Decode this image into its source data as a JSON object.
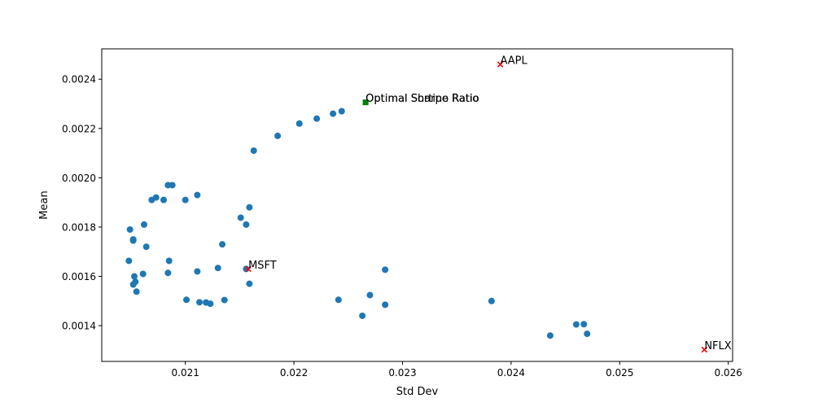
{
  "chart_data": {
    "type": "scatter",
    "title": "",
    "xlabel": "Std Dev",
    "ylabel": "Mean",
    "xlim": [
      0.02023,
      0.02604
    ],
    "ylim": [
      0.001255,
      0.002523
    ],
    "xticks": [
      0.021,
      0.022,
      0.023,
      0.024,
      0.025,
      0.026
    ],
    "yticks": [
      0.0014,
      0.0016,
      0.0018,
      0.002,
      0.0022,
      0.0024
    ],
    "xtick_labels": [
      "0.021",
      "0.022",
      "0.023",
      "0.024",
      "0.025",
      "0.026"
    ],
    "ytick_labels": [
      "0.0014",
      "0.0016",
      "0.0018",
      "0.0020",
      "0.0022",
      "0.0024"
    ],
    "grid": false,
    "series": [
      {
        "marker": "circle",
        "color": "#1f77b4",
        "points": [
          [
            0.02049,
            0.00179
          ],
          [
            0.02052,
            0.00175
          ],
          [
            0.02052,
            0.001745
          ],
          [
            0.02048,
            0.001663
          ],
          [
            0.02053,
            0.0016
          ],
          [
            0.02054,
            0.001578
          ],
          [
            0.02052,
            0.001567
          ],
          [
            0.02055,
            0.001538
          ],
          [
            0.02062,
            0.00181
          ],
          [
            0.02064,
            0.00172
          ],
          [
            0.02061,
            0.00161
          ],
          [
            0.02069,
            0.00191
          ],
          [
            0.02073,
            0.00192
          ],
          [
            0.0208,
            0.00191
          ],
          [
            0.02084,
            0.00197
          ],
          [
            0.02088,
            0.00197
          ],
          [
            0.021,
            0.00191
          ],
          [
            0.02111,
            0.00193
          ],
          [
            0.02084,
            0.001614
          ],
          [
            0.02085,
            0.001663
          ],
          [
            0.02111,
            0.00162
          ],
          [
            0.02101,
            0.001505
          ],
          [
            0.02113,
            0.001495
          ],
          [
            0.02119,
            0.001494
          ],
          [
            0.02123,
            0.001489
          ],
          [
            0.02136,
            0.001504
          ],
          [
            0.0213,
            0.001634
          ],
          [
            0.02134,
            0.00173
          ],
          [
            0.02151,
            0.001838
          ],
          [
            0.02156,
            0.00181
          ],
          [
            0.02159,
            0.00188
          ],
          [
            0.02156,
            0.00163
          ],
          [
            0.02159,
            0.00157
          ],
          [
            0.02163,
            0.00211
          ],
          [
            0.02185,
            0.00217
          ],
          [
            0.02205,
            0.00222
          ],
          [
            0.02221,
            0.00224
          ],
          [
            0.02236,
            0.00226
          ],
          [
            0.02244,
            0.00227
          ],
          [
            0.02241,
            0.001505
          ],
          [
            0.02263,
            0.00144
          ],
          [
            0.0227,
            0.001524
          ],
          [
            0.02284,
            0.001627
          ],
          [
            0.02284,
            0.001485
          ],
          [
            0.02382,
            0.0015
          ],
          [
            0.02436,
            0.00136
          ],
          [
            0.0246,
            0.001405
          ],
          [
            0.02467,
            0.001406
          ],
          [
            0.0247,
            0.001367
          ]
        ]
      },
      {
        "marker": "x",
        "color": "#ff0000",
        "points": [
          [
            0.0239,
            0.00246
          ],
          [
            0.02158,
            0.00163
          ],
          [
            0.02578,
            0.001303
          ]
        ],
        "labels": [
          "AAPL",
          "MSFT",
          "NFLX"
        ]
      },
      {
        "marker": "square",
        "color": "#008000",
        "points": [
          [
            0.02266,
            0.002306
          ]
        ],
        "labels": [
          "Optimal Sharpe Ratio",
          "Optimal Sortino Ratio"
        ]
      }
    ]
  }
}
